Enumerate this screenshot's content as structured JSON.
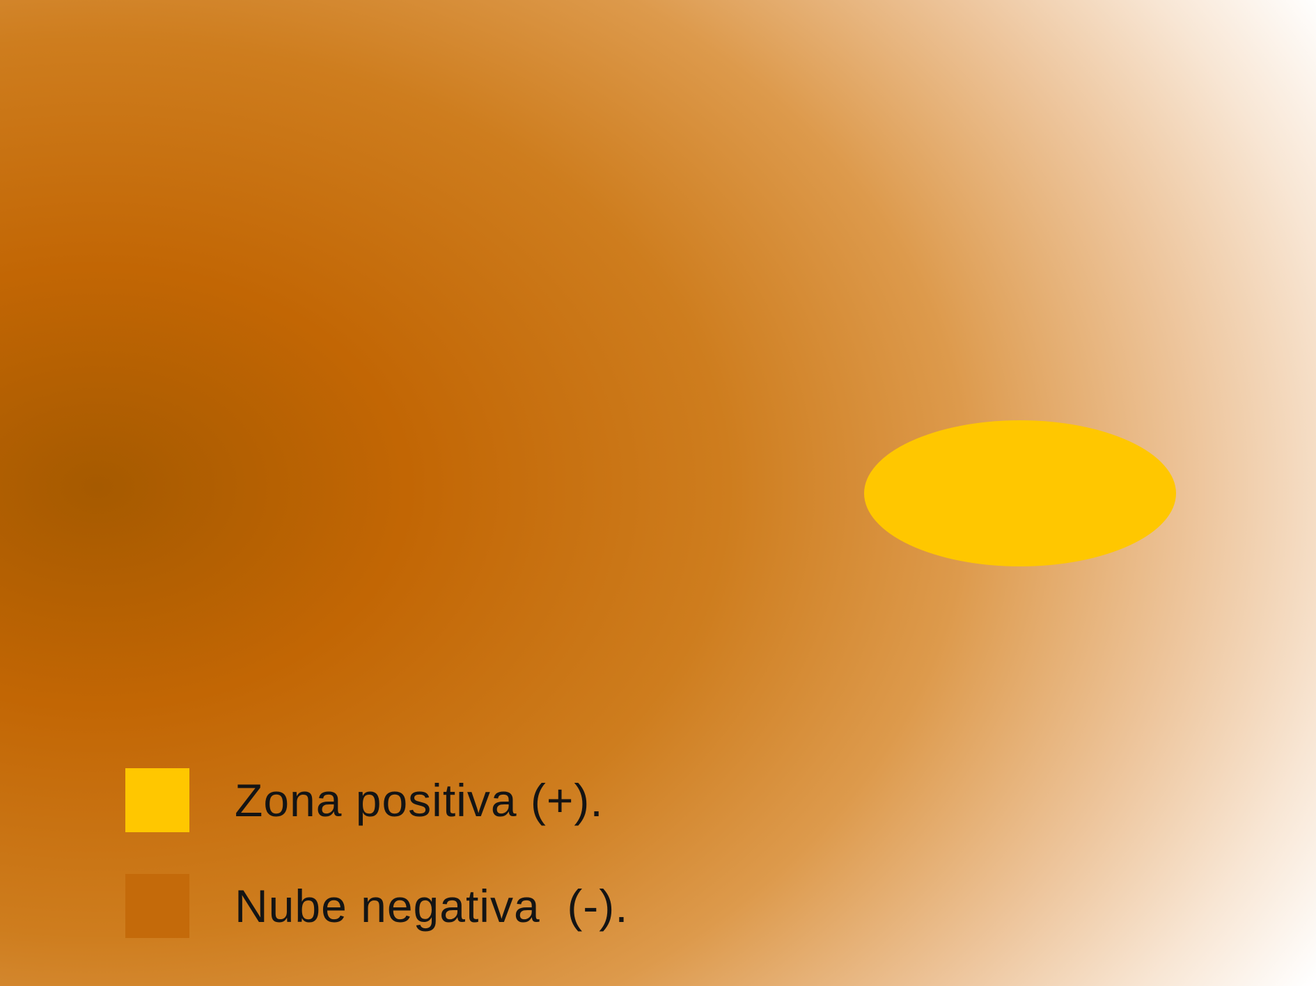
{
  "diagram": {
    "colors": {
      "cloud_core": "#A65A00",
      "cloud_mid": "#C46A05",
      "cloud_outer": "#DD9A4C",
      "cloud_edge": "#F6E1CB",
      "positive_zone": "#FFC700",
      "background": "#FFFFFF"
    },
    "legend": [
      {
        "label": "Zona positiva (+).",
        "color": "#FFC700"
      },
      {
        "label": "Nube negativa  (-).",
        "color": "#C46A0A"
      }
    ]
  }
}
